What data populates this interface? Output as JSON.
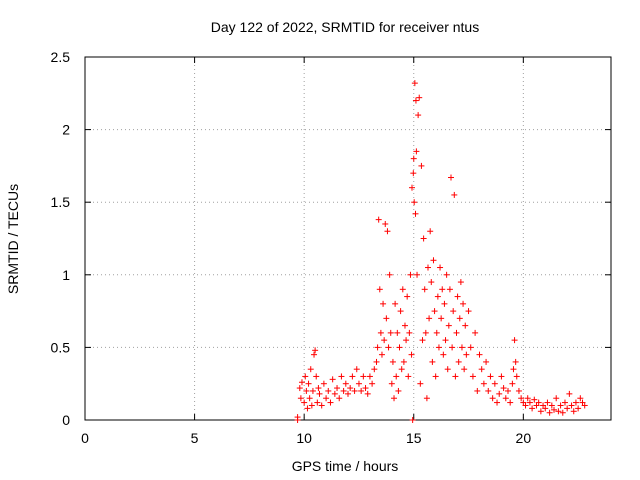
{
  "chart_data": {
    "type": "scatter",
    "title": "Day 122 of 2022, SRMTID for receiver ntus",
    "xlabel": "GPS time / hours",
    "ylabel": "SRMTID / TECUs",
    "xlim": [
      0,
      24
    ],
    "ylim": [
      0,
      2.5
    ],
    "x_ticks": [
      0,
      5,
      10,
      15,
      20
    ],
    "x_tick_labels": [
      "0",
      "5",
      "10",
      "15",
      "20"
    ],
    "y_ticks": [
      0,
      0.5,
      1,
      1.5,
      2,
      2.5
    ],
    "y_tick_labels": [
      "0",
      "0.5",
      "1",
      "1.5",
      "2",
      "2.5"
    ],
    "grid": true,
    "marker": "plus",
    "series_color": "#ff0000",
    "series": [
      {
        "name": "SRMTID",
        "x": [
          9.7,
          9.7,
          9.8,
          9.85,
          9.9,
          10.0,
          10.05,
          10.1,
          10.15,
          10.2,
          10.25,
          10.3,
          10.35,
          10.4,
          10.45,
          10.5,
          10.55,
          10.6,
          10.65,
          10.7,
          10.8,
          10.9,
          11.0,
          11.1,
          11.2,
          11.3,
          11.4,
          11.5,
          11.6,
          11.7,
          11.8,
          11.9,
          12.0,
          12.1,
          12.2,
          12.3,
          12.4,
          12.5,
          12.6,
          12.7,
          12.8,
          12.9,
          13.0,
          13.1,
          13.2,
          13.3,
          13.35,
          13.4,
          13.45,
          13.5,
          13.55,
          13.6,
          13.65,
          13.7,
          13.75,
          13.8,
          13.85,
          13.9,
          13.95,
          14.0,
          14.05,
          14.1,
          14.15,
          14.2,
          14.25,
          14.3,
          14.35,
          14.4,
          14.45,
          14.5,
          14.55,
          14.6,
          14.65,
          14.7,
          14.75,
          14.8,
          14.85,
          14.9,
          14.92,
          14.95,
          14.98,
          15.0,
          15.02,
          15.05,
          15.08,
          15.1,
          15.12,
          15.15,
          15.2,
          15.25,
          15.3,
          15.35,
          15.4,
          15.45,
          15.5,
          15.55,
          15.6,
          15.65,
          15.7,
          15.75,
          15.8,
          15.85,
          15.9,
          15.95,
          16.0,
          16.05,
          16.1,
          16.15,
          16.2,
          16.25,
          16.3,
          16.35,
          16.4,
          16.45,
          16.5,
          16.55,
          16.6,
          16.65,
          16.7,
          16.75,
          16.8,
          16.85,
          16.9,
          16.95,
          17.0,
          17.05,
          17.1,
          17.15,
          17.2,
          17.25,
          17.3,
          17.35,
          17.4,
          17.5,
          17.6,
          17.7,
          17.8,
          17.9,
          18.0,
          18.1,
          18.2,
          18.3,
          18.4,
          18.5,
          18.6,
          18.7,
          18.8,
          18.9,
          19.0,
          19.1,
          19.2,
          19.3,
          19.4,
          19.5,
          19.55,
          19.6,
          19.65,
          19.7,
          19.8,
          19.9,
          20.0,
          20.1,
          20.2,
          20.3,
          20.4,
          20.5,
          20.6,
          20.7,
          20.8,
          20.9,
          21.0,
          21.1,
          21.2,
          21.3,
          21.4,
          21.5,
          21.6,
          21.7,
          21.8,
          21.9,
          22.0,
          22.1,
          22.2,
          22.3,
          22.4,
          22.5,
          22.6,
          22.7,
          22.8
        ],
        "y": [
          0.0,
          0.02,
          0.22,
          0.15,
          0.26,
          0.12,
          0.3,
          0.2,
          0.08,
          0.25,
          0.15,
          0.35,
          0.1,
          0.2,
          0.45,
          0.48,
          0.3,
          0.12,
          0.22,
          0.18,
          0.1,
          0.25,
          0.15,
          0.2,
          0.12,
          0.28,
          0.18,
          0.22,
          0.15,
          0.3,
          0.2,
          0.25,
          0.18,
          0.22,
          0.3,
          0.2,
          0.35,
          0.25,
          0.2,
          0.3,
          0.22,
          0.18,
          0.3,
          0.25,
          0.35,
          0.4,
          0.5,
          1.38,
          0.9,
          0.6,
          0.45,
          0.8,
          0.55,
          1.35,
          0.7,
          1.3,
          0.5,
          1.0,
          0.6,
          0.25,
          0.4,
          0.15,
          0.8,
          0.3,
          0.6,
          0.2,
          0.5,
          0.75,
          0.35,
          0.9,
          0.4,
          0.65,
          0.55,
          0.85,
          0.3,
          0.6,
          1.0,
          0.45,
          1.6,
          0.0,
          1.7,
          1.8,
          1.5,
          2.32,
          1.42,
          2.2,
          1.85,
          1.0,
          2.1,
          2.22,
          0.25,
          1.75,
          0.55,
          1.25,
          0.9,
          0.6,
          0.15,
          1.05,
          0.7,
          1.3,
          0.95,
          0.4,
          1.1,
          0.75,
          0.3,
          0.6,
          0.85,
          0.5,
          1.05,
          0.7,
          0.9,
          0.45,
          0.8,
          0.55,
          1.0,
          0.35,
          0.65,
          0.9,
          1.67,
          0.5,
          0.75,
          1.55,
          0.3,
          0.6,
          0.85,
          0.4,
          0.7,
          0.95,
          0.5,
          0.8,
          0.35,
          0.65,
          0.45,
          0.75,
          0.5,
          0.3,
          0.6,
          0.2,
          0.45,
          0.35,
          0.25,
          0.4,
          0.2,
          0.3,
          0.15,
          0.25,
          0.12,
          0.18,
          0.3,
          0.22,
          0.15,
          0.2,
          0.12,
          0.25,
          0.35,
          0.55,
          0.4,
          0.3,
          0.2,
          0.15,
          0.12,
          0.1,
          0.15,
          0.12,
          0.08,
          0.14,
          0.1,
          0.12,
          0.06,
          0.1,
          0.08,
          0.12,
          0.05,
          0.1,
          0.07,
          0.15,
          0.06,
          0.1,
          0.05,
          0.12,
          0.08,
          0.18,
          0.1,
          0.06,
          0.12,
          0.08,
          0.15,
          0.12,
          0.1
        ]
      }
    ]
  }
}
